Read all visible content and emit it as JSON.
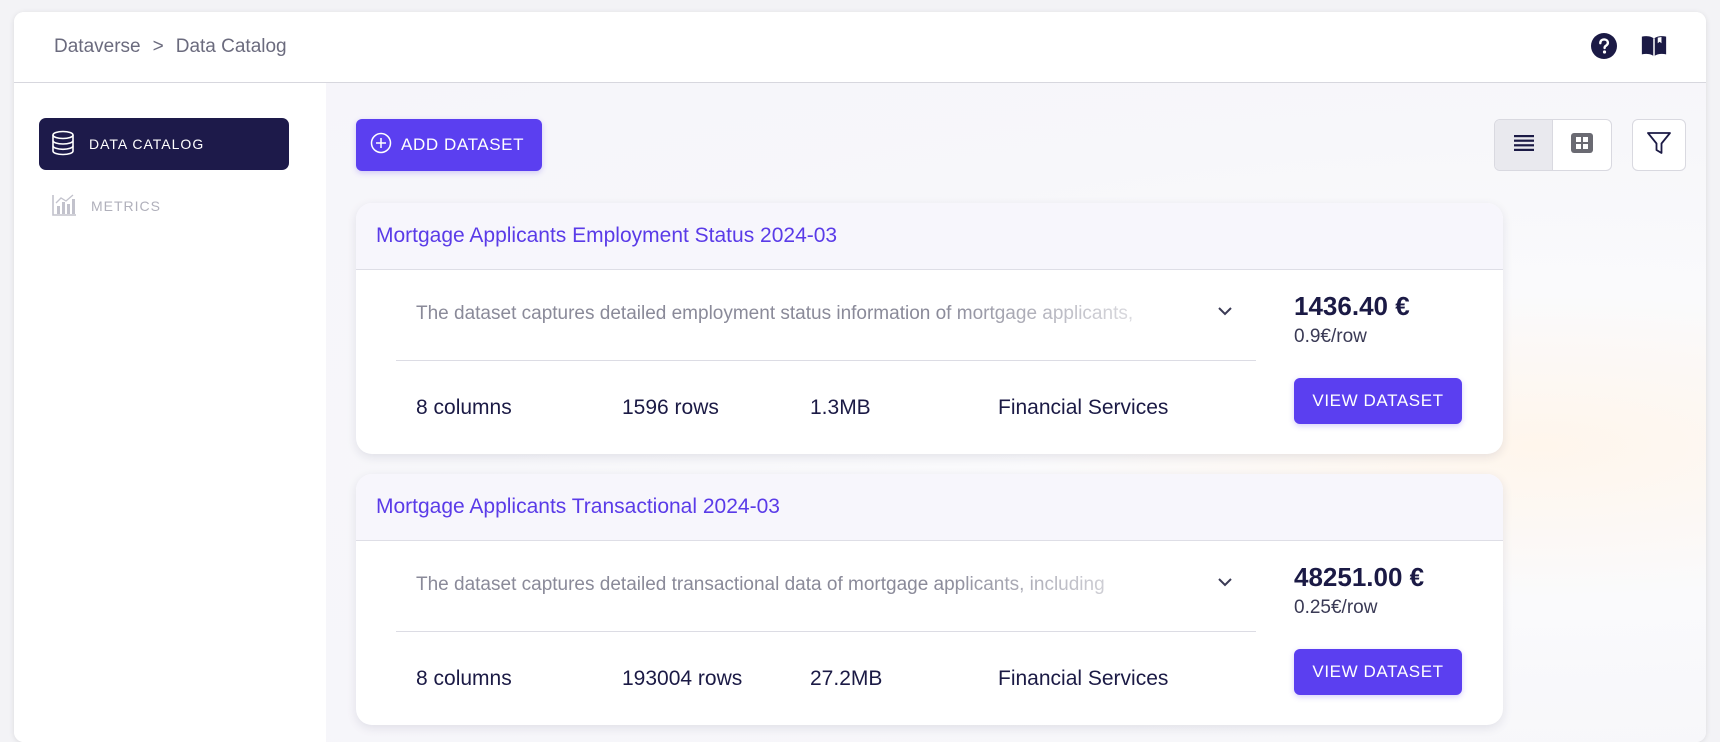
{
  "breadcrumb": {
    "root": "Dataverse",
    "separator": ">",
    "current": "Data Catalog"
  },
  "topbar": {
    "help_icon": "help-circle-icon",
    "docs_icon": "open-book-icon"
  },
  "sidebar": {
    "items": [
      {
        "label": "DATA CATALOG",
        "icon": "database-icon",
        "active": true
      },
      {
        "label": "METRICS",
        "icon": "bar-chart-icon",
        "active": false
      }
    ]
  },
  "toolbar": {
    "add_label": "ADD DATASET",
    "add_icon": "plus-circle-icon",
    "view_modes": [
      "list",
      "grid"
    ],
    "active_view": "list",
    "filter_icon": "filter-icon"
  },
  "datasets": [
    {
      "title": "Mortgage Applicants Employment Status 2024-03",
      "description": "The dataset captures detailed employment status information of mortgage applicants,",
      "columns": "8 columns",
      "rows": "1596 rows",
      "size": "1.3MB",
      "category": "Financial Services",
      "price": "1436.40 €",
      "price_per_row": "0.9€/row",
      "view_label": "VIEW DATASET"
    },
    {
      "title": "Mortgage Applicants Transactional 2024-03",
      "description": "The dataset captures detailed transactional data of mortgage applicants, including",
      "columns": "8 columns",
      "rows": "193004 rows",
      "size": "27.2MB",
      "category": "Financial Services",
      "price": "48251.00 €",
      "price_per_row": "0.25€/row",
      "view_label": "VIEW DATASET"
    }
  ],
  "colors": {
    "accent": "#5b3ff0",
    "nav_dark": "#1d1a4a",
    "title_purple": "#5a3be8"
  }
}
